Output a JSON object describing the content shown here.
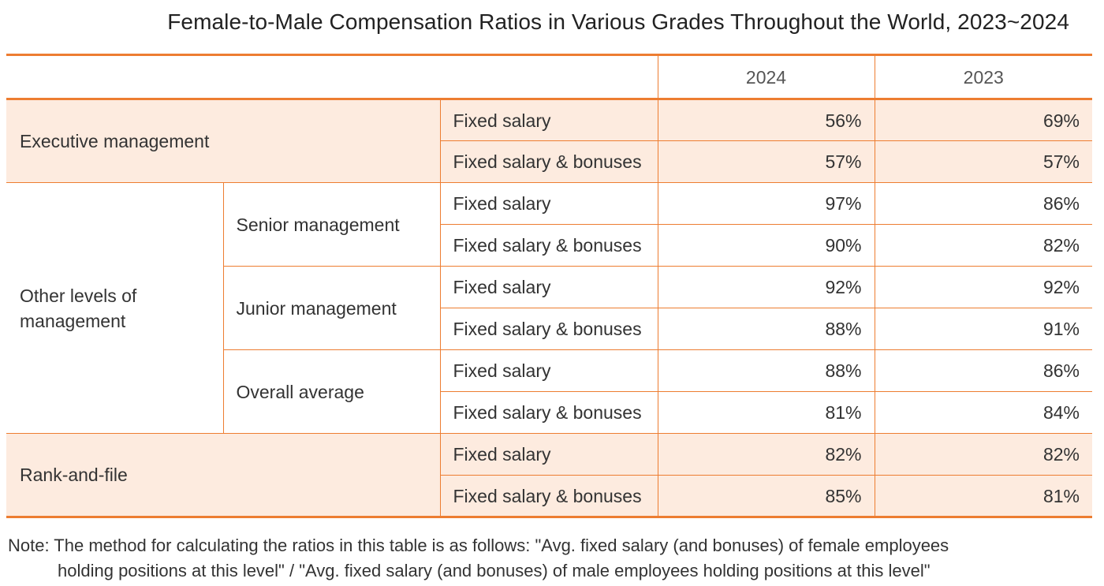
{
  "title": "Female-to-Male Compensation Ratios in Various Grades Throughout the World, 2023~2024",
  "columns": {
    "year1": "2024",
    "year2": "2023"
  },
  "rows": {
    "executive": {
      "label": "Executive management",
      "fixed": {
        "label": "Fixed salary",
        "y2024": "56%",
        "y2023": "69%"
      },
      "bonus": {
        "label": "Fixed salary & bonuses",
        "y2024": "57%",
        "y2023": "57%"
      }
    },
    "other": {
      "label_line1": "Other levels of",
      "label_line2": "management",
      "senior": {
        "label": "Senior management",
        "fixed": {
          "label": "Fixed salary",
          "y2024": "97%",
          "y2023": "86%"
        },
        "bonus": {
          "label": "Fixed salary & bonuses",
          "y2024": "90%",
          "y2023": "82%"
        }
      },
      "junior": {
        "label": "Junior management",
        "fixed": {
          "label": "Fixed salary",
          "y2024": "92%",
          "y2023": "92%"
        },
        "bonus": {
          "label": "Fixed salary & bonuses",
          "y2024": "88%",
          "y2023": "91%"
        }
      },
      "overall": {
        "label": "Overall average",
        "fixed": {
          "label": "Fixed salary",
          "y2024": "88%",
          "y2023": "86%"
        },
        "bonus": {
          "label": "Fixed salary & bonuses",
          "y2024": "81%",
          "y2023": "84%"
        }
      }
    },
    "rankfile": {
      "label": "Rank-and-file",
      "fixed": {
        "label": "Fixed salary",
        "y2024": "82%",
        "y2023": "82%"
      },
      "bonus": {
        "label": "Fixed salary & bonuses",
        "y2024": "85%",
        "y2023": "81%"
      }
    }
  },
  "note": {
    "line1": "Note: The method for calculating the ratios in this table is as follows: \"Avg. fixed salary (and bonuses) of female employees",
    "line2": "holding positions at this level\" / \"Avg. fixed salary (and bonuses) of male employees holding positions at this level\""
  },
  "colors": {
    "accent": "#ED7D31",
    "shade": "#FDEBDF"
  }
}
